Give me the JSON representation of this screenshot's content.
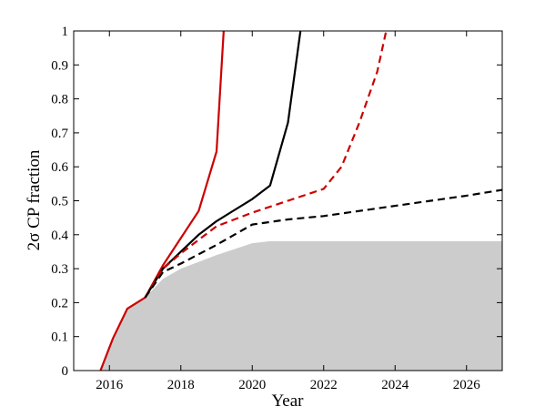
{
  "chart_data": {
    "type": "line",
    "xlabel": "Year",
    "ylabel": "2σ CP fraction",
    "xlim": [
      2015,
      2027
    ],
    "ylim": [
      0,
      1
    ],
    "x_ticks": [
      2016,
      2018,
      2020,
      2022,
      2024,
      2026
    ],
    "y_ticks": [
      0,
      0.1,
      0.2,
      0.3,
      0.4,
      0.5,
      0.6,
      0.7,
      0.8,
      0.9,
      1
    ],
    "y_tick_labels": [
      "0",
      "0.1",
      "0.2",
      "0.3",
      "0.4",
      "0.5",
      "0.6",
      "0.7",
      "0.8",
      "0.9",
      "1"
    ],
    "grid": false,
    "area": {
      "color": "#cccccc",
      "points": [
        {
          "x": 2015.75,
          "y": 0
        },
        {
          "x": 2016.1,
          "y": 0.095
        },
        {
          "x": 2016.5,
          "y": 0.182
        },
        {
          "x": 2017.0,
          "y": 0.215
        },
        {
          "x": 2017.5,
          "y": 0.27
        },
        {
          "x": 2018.0,
          "y": 0.3
        },
        {
          "x": 2019.0,
          "y": 0.34
        },
        {
          "x": 2020.0,
          "y": 0.375
        },
        {
          "x": 2020.5,
          "y": 0.381
        },
        {
          "x": 2027.0,
          "y": 0.381
        }
      ]
    },
    "series": [
      {
        "color": "#cc0000",
        "dash": "solid",
        "points": [
          {
            "x": 2015.75,
            "y": 0
          },
          {
            "x": 2016.1,
            "y": 0.095
          },
          {
            "x": 2016.5,
            "y": 0.182
          },
          {
            "x": 2017.0,
            "y": 0.215
          },
          {
            "x": 2017.5,
            "y": 0.31
          },
          {
            "x": 2018.0,
            "y": 0.39
          },
          {
            "x": 2018.5,
            "y": 0.47
          },
          {
            "x": 2019.0,
            "y": 0.645
          },
          {
            "x": 2019.2,
            "y": 1.0
          }
        ]
      },
      {
        "color": "#000000",
        "dash": "solid",
        "points": [
          {
            "x": 2017.0,
            "y": 0.215
          },
          {
            "x": 2017.5,
            "y": 0.3
          },
          {
            "x": 2018.0,
            "y": 0.35
          },
          {
            "x": 2018.5,
            "y": 0.4
          },
          {
            "x": 2019.0,
            "y": 0.44
          },
          {
            "x": 2020.0,
            "y": 0.505
          },
          {
            "x": 2020.5,
            "y": 0.545
          },
          {
            "x": 2021.0,
            "y": 0.73
          },
          {
            "x": 2021.35,
            "y": 1.0
          }
        ]
      },
      {
        "color": "#cc0000",
        "dash": "dashed",
        "points": [
          {
            "x": 2017.0,
            "y": 0.215
          },
          {
            "x": 2017.5,
            "y": 0.3
          },
          {
            "x": 2018.0,
            "y": 0.345
          },
          {
            "x": 2019.0,
            "y": 0.425
          },
          {
            "x": 2020.0,
            "y": 0.465
          },
          {
            "x": 2021.0,
            "y": 0.5
          },
          {
            "x": 2022.0,
            "y": 0.535
          },
          {
            "x": 2022.5,
            "y": 0.6
          },
          {
            "x": 2023.0,
            "y": 0.73
          },
          {
            "x": 2023.5,
            "y": 0.88
          },
          {
            "x": 2023.75,
            "y": 1.0
          }
        ]
      },
      {
        "color": "#000000",
        "dash": "dashed",
        "points": [
          {
            "x": 2017.0,
            "y": 0.215
          },
          {
            "x": 2017.5,
            "y": 0.29
          },
          {
            "x": 2018.0,
            "y": 0.315
          },
          {
            "x": 2019.0,
            "y": 0.37
          },
          {
            "x": 2020.0,
            "y": 0.43
          },
          {
            "x": 2021.0,
            "y": 0.445
          },
          {
            "x": 2022.0,
            "y": 0.455
          },
          {
            "x": 2023.0,
            "y": 0.47
          },
          {
            "x": 2024.0,
            "y": 0.485
          },
          {
            "x": 2025.0,
            "y": 0.5
          },
          {
            "x": 2026.0,
            "y": 0.515
          },
          {
            "x": 2027.0,
            "y": 0.532
          }
        ]
      }
    ]
  }
}
